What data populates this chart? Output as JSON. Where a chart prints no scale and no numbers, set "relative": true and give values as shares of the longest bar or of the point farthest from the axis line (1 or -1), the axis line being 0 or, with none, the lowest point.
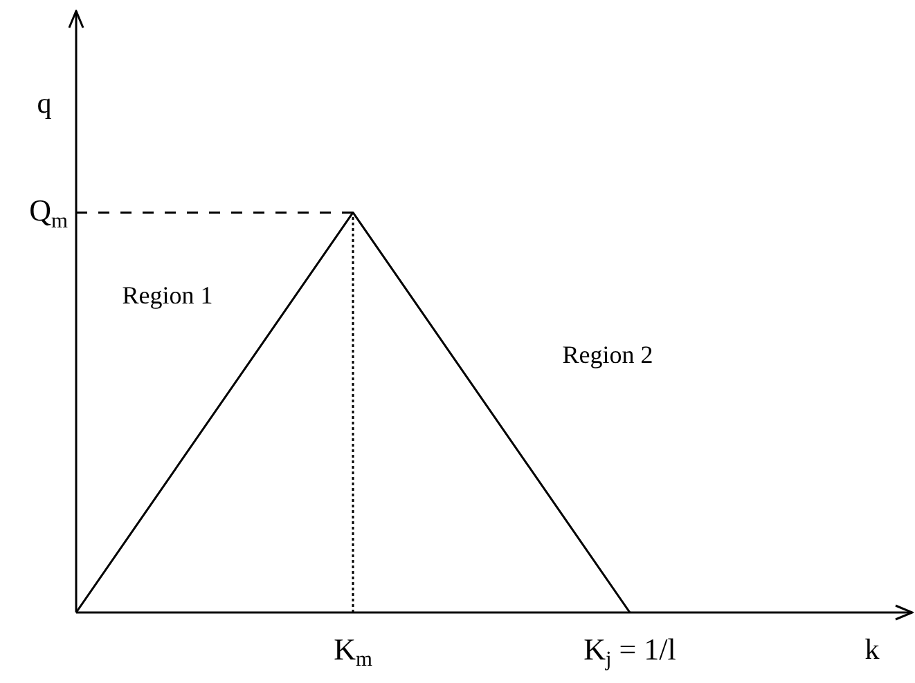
{
  "chart_data": {
    "type": "line",
    "relative": true,
    "xlabel": "k",
    "ylabel": "q",
    "categories": [
      null,
      "K$_{m}$",
      "K$_{j}$ = 1/l",
      null
    ],
    "series": [
      {
        "color": "#000000",
        "values": [
          0,
          1,
          0,
          null
        ]
      }
    ],
    "ref_lines": [
      {
        "axis": "y",
        "value": 1,
        "label": "Q$_{m}$",
        "line_style": "dashed",
        "color": "#000000"
      },
      {
        "axis": "x",
        "value": "K$_{m}$",
        "line_style": "dotted",
        "color": "#000000"
      }
    ],
    "annotations": [
      "Region 1",
      "Region 2"
    ],
    "grid": false,
    "legend": false,
    "marker": "none",
    "line_style": "solid"
  }
}
